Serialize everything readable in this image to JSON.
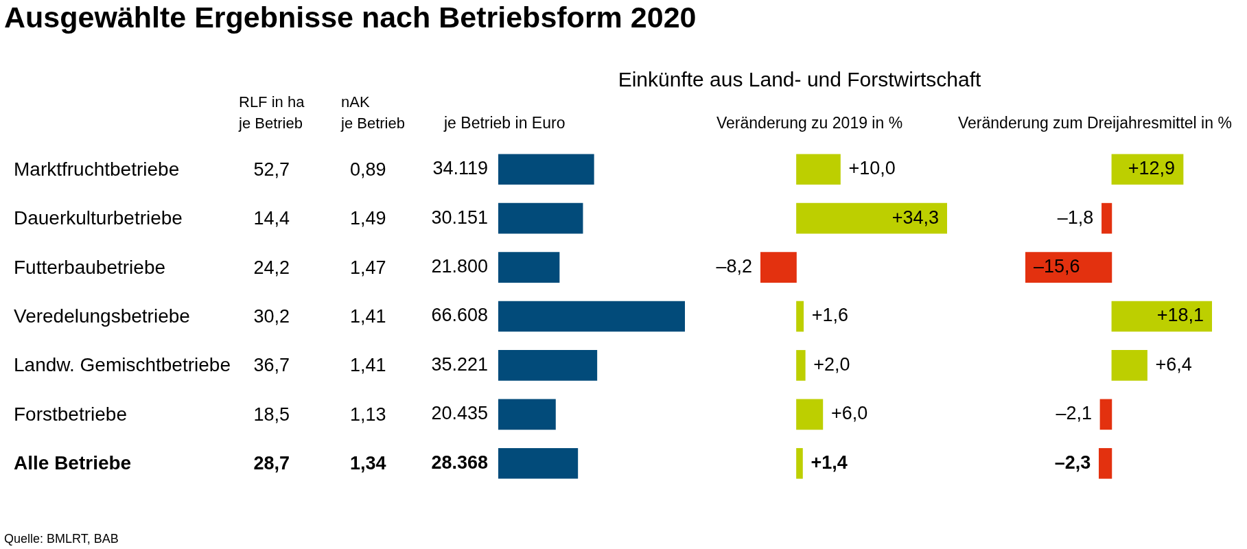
{
  "chart_data": [
    {
      "type": "other",
      "title": "Ausgewählte Ergebnisse nach Betriebsform 2020",
      "categories": [
        "Marktfruchtbetriebe",
        "Dauerkulturbetriebe",
        "Futterbaubetriebe",
        "Veredelungsbetriebe",
        "Landw. Gemischtbetriebe",
        "Forstbetriebe",
        "Alle Betriebe"
      ],
      "series": [
        {
          "name": "RLF in ha\nje Betrieb",
          "values": [
            52.7,
            14.4,
            24.2,
            30.2,
            36.7,
            18.5,
            28.7
          ],
          "value_labels": [
            "52,7",
            "14,4",
            "24,2",
            "30,2",
            "36,7",
            "18,5",
            "28,7"
          ]
        },
        {
          "name": "nAK\nje Betrieb",
          "values": [
            0.89,
            1.49,
            1.47,
            1.41,
            1.41,
            1.13,
            1.34
          ],
          "value_labels": [
            "0,89",
            "1,49",
            "1,47",
            "1,41",
            "1,41",
            "1,13",
            "1,34"
          ]
        }
      ],
      "data_labels": true,
      "annotations": [
        "Quelle: BMLRT, BAB"
      ]
    },
    {
      "type": "bar",
      "orientation": "horizontal",
      "subtitle": "Einkünfte aus Land- und Forstwirtschaft",
      "title": "je Betrieb in Euro",
      "categories": [
        null,
        null,
        null,
        null,
        null,
        null,
        null
      ],
      "values": [
        34119,
        30151,
        21800,
        66608,
        35221,
        20435,
        28368
      ],
      "color": "#024b7a",
      "value_labels": [
        "34.119",
        "30.151",
        "21.800",
        "66.608",
        "35.221",
        "20.435",
        "28.368"
      ],
      "tick_labels": false
    },
    {
      "type": "bar",
      "orientation": "horizontal",
      "title": "Veränderung zu 2019 in %",
      "categories": [
        null,
        null,
        null,
        null,
        null,
        null,
        null
      ],
      "values": [
        10.0,
        34.3,
        -8.2,
        1.6,
        2.0,
        6.0,
        1.4
      ],
      "colors": [
        "#bdcf00",
        "#bdcf00",
        "#e3310f",
        "#bdcf00",
        "#bdcf00",
        "#bdcf00",
        "#bdcf00"
      ],
      "value_labels": [
        "+10,0",
        "+34,3",
        "–8,2",
        "+1,6",
        "+2,0",
        "+6,0",
        "+1,4"
      ],
      "tick_labels": false
    },
    {
      "type": "bar",
      "orientation": "horizontal",
      "title": "Veränderung zum Dreijahresmittel in %",
      "categories": [
        null,
        null,
        null,
        null,
        null,
        null,
        null
      ],
      "values": [
        12.9,
        -1.8,
        -15.6,
        18.1,
        6.4,
        -2.1,
        -2.3
      ],
      "colors": [
        "#bdcf00",
        "#e3310f",
        "#e3310f",
        "#bdcf00",
        "#bdcf00",
        "#e3310f",
        "#e3310f"
      ],
      "value_labels": [
        "+12,9",
        "–1,8",
        "–15,6",
        "+18,1",
        "+6,4",
        "–2,1",
        "–2,3"
      ],
      "tick_labels": false
    }
  ]
}
